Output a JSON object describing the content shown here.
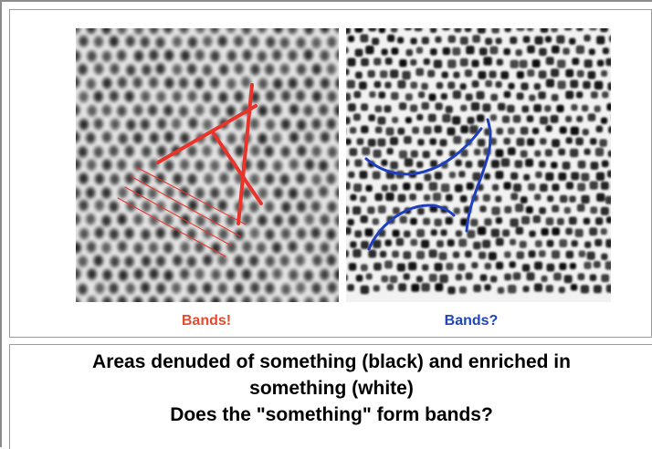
{
  "figure": {
    "left_label": "Bands!",
    "right_label": "Bands?",
    "left_label_color": "#e64a2e",
    "right_label_color": "#1d46b8",
    "left_annotation_color": "#e8342a",
    "right_annotation_color": "#1f3fbf"
  },
  "caption": {
    "line1": "Areas denuded of something (black) and enriched in",
    "line2": "something (white)",
    "line3": "Does the \"something\" form bands?"
  }
}
